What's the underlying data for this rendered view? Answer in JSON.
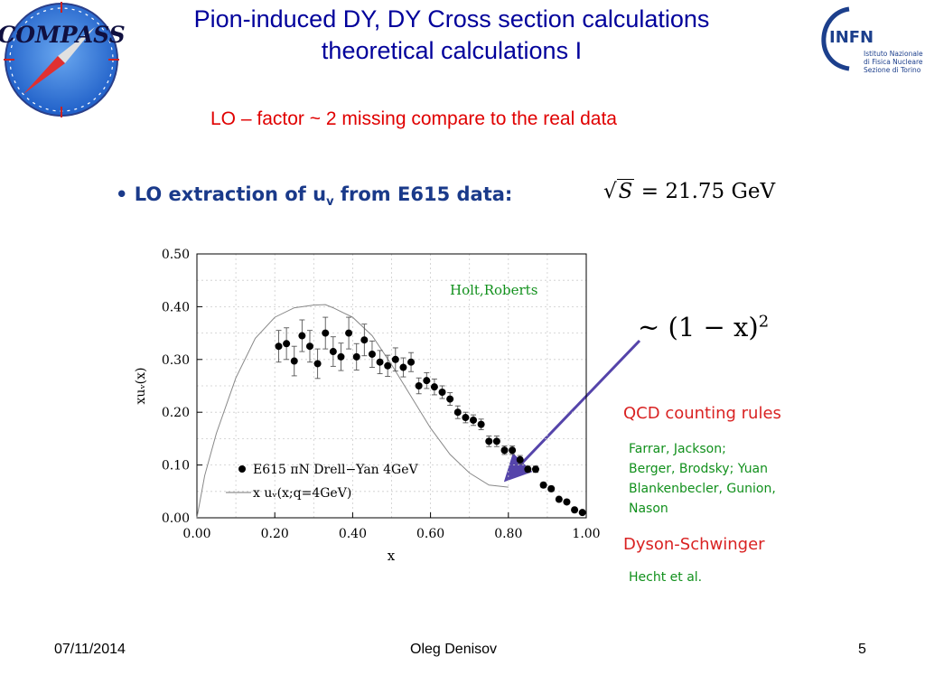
{
  "header": {
    "title_line1": "Pion-induced DY, DY Cross section calculations",
    "title_line2": "theoretical calculations I",
    "subtitle": "LO – factor ~ 2 missing compare to the real data",
    "logo_left_text": "COMPASS",
    "logo_right_text": "INFN",
    "logo_right_sub": [
      "Istituto Nazionale",
      "di Fisica Nucleare",
      "Sezione di Torino"
    ]
  },
  "body": {
    "bullet_text": "• LO extraction of u",
    "bullet_sub": "v",
    "bullet_tail": " from E615 data:",
    "sqrt_formula_lhs": "S",
    "sqrt_formula_rhs": "= 21.75 GeV",
    "formula_counting": "~ (1 − x)",
    "formula_exponent": "2",
    "qcd_title": "QCD counting rules",
    "qcd_refs": [
      "Farrar, Jackson;",
      "Berger, Brodsky; Yuan",
      "Blankenbecler, Gunion,",
      "Nason"
    ],
    "ds_title": "Dyson-Schwinger",
    "ds_refs": "Hecht et al."
  },
  "footer": {
    "date": "07/11/2014",
    "author": "Oleg Denisov",
    "page": "5"
  },
  "colors": {
    "title": "#00009b",
    "subtitle": "#e00000",
    "accent_red": "#d92222",
    "accent_green": "#11901c",
    "arrow": "#5544aa"
  },
  "chart_data": {
    "type": "scatter",
    "xlabel": "x",
    "ylabel": "xuᵥ(x)",
    "xlim": [
      0.0,
      1.0
    ],
    "ylim": [
      0.0,
      0.5
    ],
    "x_ticks": [
      "0.00",
      "0.20",
      "0.40",
      "0.60",
      "0.80",
      "1.00"
    ],
    "y_ticks": [
      "0.00",
      "0.10",
      "0.20",
      "0.30",
      "0.40",
      "0.50"
    ],
    "annotation": "Holt,Roberts",
    "legend": [
      {
        "label": "E615 πN Drell−Yan 4GeV",
        "marker": "dot"
      },
      {
        "label": "x uᵥ(x;q=4GeV)",
        "marker": "line"
      }
    ],
    "series": [
      {
        "name": "E615 πN Drell−Yan 4GeV",
        "x": [
          0.21,
          0.23,
          0.25,
          0.27,
          0.29,
          0.31,
          0.33,
          0.35,
          0.37,
          0.39,
          0.41,
          0.43,
          0.45,
          0.47,
          0.49,
          0.51,
          0.53,
          0.55,
          0.57,
          0.59,
          0.61,
          0.63,
          0.65,
          0.67,
          0.69,
          0.71,
          0.73,
          0.75,
          0.77,
          0.79,
          0.81,
          0.83,
          0.85,
          0.87,
          0.89,
          0.91,
          0.93,
          0.95,
          0.97,
          0.99
        ],
        "y": [
          0.325,
          0.33,
          0.297,
          0.345,
          0.325,
          0.292,
          0.35,
          0.315,
          0.305,
          0.35,
          0.305,
          0.337,
          0.31,
          0.295,
          0.288,
          0.3,
          0.285,
          0.295,
          0.25,
          0.26,
          0.248,
          0.238,
          0.225,
          0.2,
          0.19,
          0.185,
          0.177,
          0.145,
          0.145,
          0.128,
          0.128,
          0.11,
          0.092,
          0.092,
          0.062,
          0.055,
          0.035,
          0.03,
          0.015,
          0.01
        ],
        "err": [
          0.03,
          0.03,
          0.028,
          0.03,
          0.03,
          0.028,
          0.03,
          0.028,
          0.026,
          0.03,
          0.025,
          0.03,
          0.025,
          0.022,
          0.02,
          0.022,
          0.018,
          0.018,
          0.015,
          0.015,
          0.015,
          0.012,
          0.012,
          0.012,
          0.01,
          0.01,
          0.01,
          0.01,
          0.01,
          0.008,
          0.008,
          0.008,
          0.006,
          0.006,
          0.005,
          0.005,
          0.004,
          0.004,
          0.003,
          0.003
        ]
      },
      {
        "name": "x uᵥ(x;q=4GeV)",
        "x": [
          0.0,
          0.02,
          0.05,
          0.1,
          0.15,
          0.2,
          0.25,
          0.3,
          0.33,
          0.35,
          0.4,
          0.45,
          0.5,
          0.55,
          0.6,
          0.65,
          0.7,
          0.75,
          0.8
        ],
        "y": [
          0.0,
          0.08,
          0.16,
          0.265,
          0.34,
          0.38,
          0.398,
          0.403,
          0.404,
          0.398,
          0.38,
          0.345,
          0.29,
          0.23,
          0.17,
          0.12,
          0.085,
          0.062,
          0.058
        ]
      }
    ]
  }
}
